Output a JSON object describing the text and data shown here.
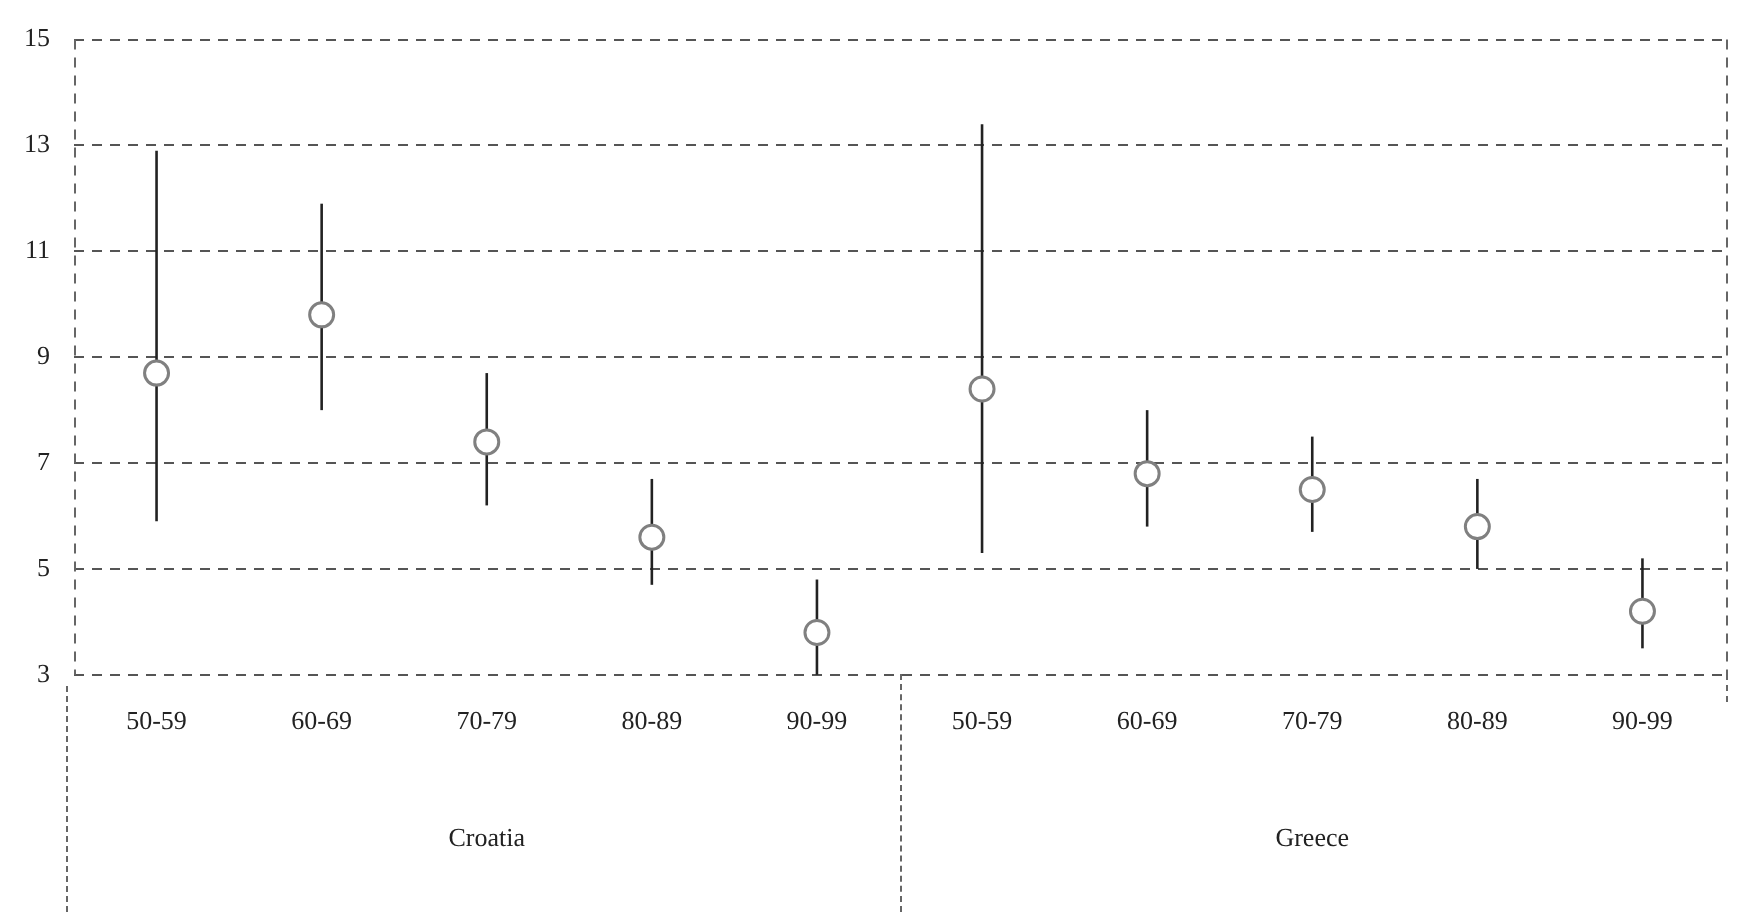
{
  "chart_data": {
    "type": "scatter",
    "categories": [
      "50-59",
      "60-69",
      "70-79",
      "80-89",
      "90-99",
      "50-59",
      "60-69",
      "70-79",
      "80-89",
      "90-99"
    ],
    "series": [
      {
        "color": "#808080",
        "values": [
          8.7,
          9.8,
          7.4,
          5.6,
          3.8,
          8.4,
          6.8,
          6.5,
          5.8,
          4.2
        ],
        "errors": [
          [
            5.9,
            12.9
          ],
          [
            8.0,
            11.9
          ],
          [
            6.2,
            8.7
          ],
          [
            4.7,
            6.7
          ],
          [
            3.0,
            4.8
          ],
          [
            5.3,
            13.4
          ],
          [
            5.8,
            8.0
          ],
          [
            5.7,
            7.5
          ],
          [
            5.0,
            6.7
          ],
          [
            3.5,
            5.2
          ]
        ]
      }
    ],
    "annotations": [
      "Croatia",
      "Greece"
    ],
    "ylim": [
      3,
      15
    ],
    "yticks": [
      3,
      5,
      7,
      9,
      11,
      13,
      15
    ],
    "grid": "y",
    "marker": "circle",
    "legend": false
  }
}
